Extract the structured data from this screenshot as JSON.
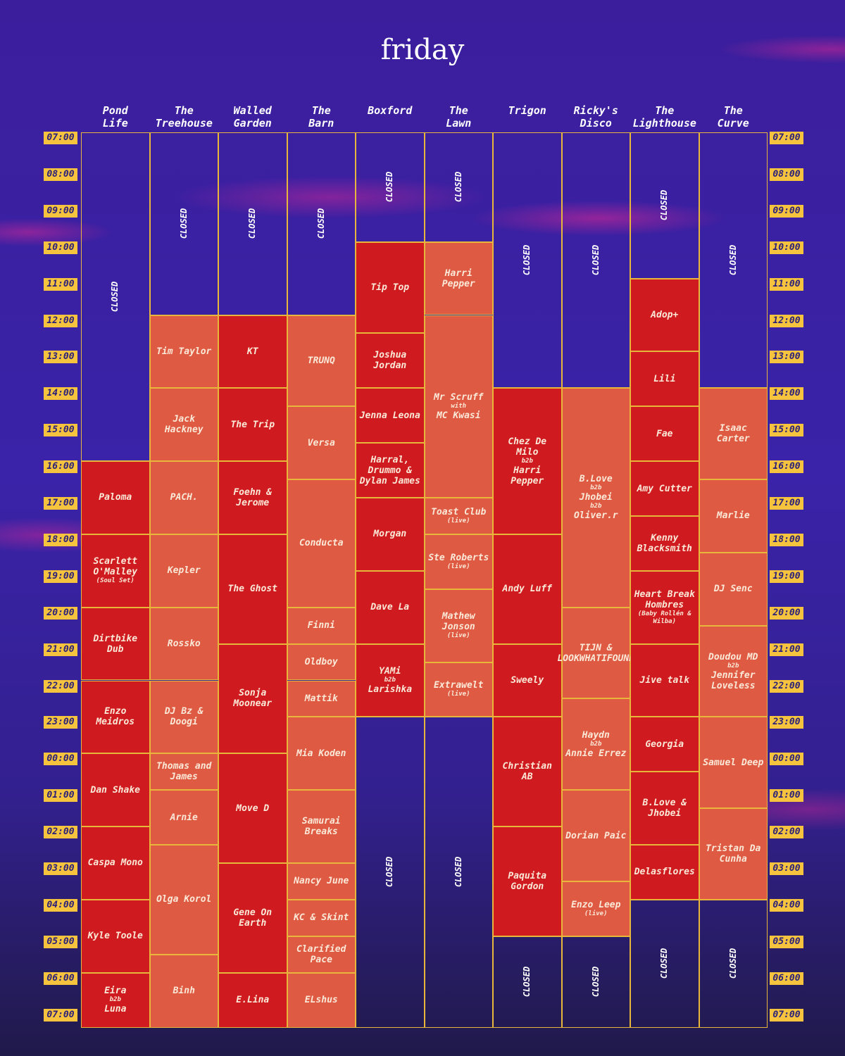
{
  "header": {
    "title": "friday"
  },
  "times": [
    "07:00",
    "08:00",
    "09:00",
    "10:00",
    "11:00",
    "12:00",
    "13:00",
    "14:00",
    "15:00",
    "16:00",
    "17:00",
    "18:00",
    "19:00",
    "20:00",
    "21:00",
    "22:00",
    "23:00",
    "00:00",
    "01:00",
    "02:00",
    "03:00",
    "04:00",
    "05:00",
    "06:00",
    "07:00"
  ],
  "stages": [
    {
      "name": [
        "Pond",
        "Life"
      ],
      "color": "#cf1a1f",
      "slots": [
        {
          "parts": [
            "CLOSED"
          ],
          "closed": true,
          "start": 7,
          "end": 16
        },
        {
          "parts": [
            "Paloma"
          ],
          "start": 16,
          "end": 18
        },
        {
          "parts": [
            "Scarlett O'Malley",
            "(Soul Set)"
          ],
          "start": 18,
          "end": 20
        },
        {
          "parts": [
            "Dirtbike Dub"
          ],
          "start": 20,
          "end": 22
        },
        {
          "parts": [
            "Enzo Meidros"
          ],
          "start": 22,
          "end": 24
        },
        {
          "parts": [
            "Dan Shake"
          ],
          "start": 24,
          "end": 26
        },
        {
          "parts": [
            "Caspa Mono"
          ],
          "start": 26,
          "end": 28
        },
        {
          "parts": [
            "Kyle Toole"
          ],
          "start": 28,
          "end": 30
        },
        {
          "parts": [
            "Eira",
            "b2b",
            "Luna"
          ],
          "start": 30,
          "end": 31.5
        }
      ]
    },
    {
      "name": [
        "The",
        "Treehouse"
      ],
      "color": "#de5a43",
      "slots": [
        {
          "parts": [
            "CLOSED"
          ],
          "closed": true,
          "start": 7,
          "end": 12
        },
        {
          "parts": [
            "Tim Taylor"
          ],
          "start": 12,
          "end": 14
        },
        {
          "parts": [
            "Jack Hackney"
          ],
          "start": 14,
          "end": 16
        },
        {
          "parts": [
            "PACH."
          ],
          "start": 16,
          "end": 18
        },
        {
          "parts": [
            "Kepler"
          ],
          "start": 18,
          "end": 20
        },
        {
          "parts": [
            "Rossko"
          ],
          "start": 20,
          "end": 22
        },
        {
          "parts": [
            "DJ Bz & Doogi"
          ],
          "start": 22,
          "end": 24
        },
        {
          "parts": [
            "Thomas and James"
          ],
          "start": 24,
          "end": 25
        },
        {
          "parts": [
            "Arnie"
          ],
          "start": 25,
          "end": 26.5
        },
        {
          "parts": [
            "Olga Korol"
          ],
          "start": 26.5,
          "end": 29.5
        },
        {
          "parts": [
            "Binh"
          ],
          "start": 29.5,
          "end": 31.5
        }
      ]
    },
    {
      "name": [
        "Walled",
        "Garden"
      ],
      "color": "#cf1a1f",
      "slots": [
        {
          "parts": [
            "CLOSED"
          ],
          "closed": true,
          "start": 7,
          "end": 12
        },
        {
          "parts": [
            "KT"
          ],
          "start": 12,
          "end": 14
        },
        {
          "parts": [
            "The Trip"
          ],
          "start": 14,
          "end": 16
        },
        {
          "parts": [
            "Foehn & Jerome"
          ],
          "start": 16,
          "end": 18
        },
        {
          "parts": [
            "The Ghost"
          ],
          "start": 18,
          "end": 21
        },
        {
          "parts": [
            "Sonja Moonear"
          ],
          "start": 21,
          "end": 24
        },
        {
          "parts": [
            "Move D"
          ],
          "start": 24,
          "end": 27
        },
        {
          "parts": [
            "Gene On Earth"
          ],
          "start": 27,
          "end": 30
        },
        {
          "parts": [
            "E.Lina"
          ],
          "start": 30,
          "end": 31.5
        }
      ]
    },
    {
      "name": [
        "The",
        "Barn"
      ],
      "color": "#de5a43",
      "slots": [
        {
          "parts": [
            "CLOSED"
          ],
          "closed": true,
          "start": 7,
          "end": 12
        },
        {
          "parts": [
            "TRUNQ"
          ],
          "start": 12,
          "end": 14.5
        },
        {
          "parts": [
            "Versa"
          ],
          "start": 14.5,
          "end": 16.5
        },
        {
          "parts": [
            "Conducta"
          ],
          "start": 16.5,
          "end": 20
        },
        {
          "parts": [
            "Finni"
          ],
          "start": 20,
          "end": 21
        },
        {
          "parts": [
            "Oldboy"
          ],
          "start": 21,
          "end": 22
        },
        {
          "parts": [
            "Mattik"
          ],
          "start": 22,
          "end": 23
        },
        {
          "parts": [
            "Mia Koden"
          ],
          "start": 23,
          "end": 25
        },
        {
          "parts": [
            "Samurai Breaks"
          ],
          "start": 25,
          "end": 27
        },
        {
          "parts": [
            "Nancy June"
          ],
          "start": 27,
          "end": 28
        },
        {
          "parts": [
            "KC & Skint"
          ],
          "start": 28,
          "end": 29
        },
        {
          "parts": [
            "Clarified Pace"
          ],
          "start": 29,
          "end": 30
        },
        {
          "parts": [
            "ELshus"
          ],
          "start": 30,
          "end": 31.5
        }
      ]
    },
    {
      "name": [
        "Boxford"
      ],
      "color": "#cf1a1f",
      "slots": [
        {
          "parts": [
            "CLOSED"
          ],
          "closed": true,
          "start": 7,
          "end": 10
        },
        {
          "parts": [
            "Tip Top"
          ],
          "start": 10,
          "end": 12.5
        },
        {
          "parts": [
            "Joshua Jordan"
          ],
          "start": 12.5,
          "end": 14
        },
        {
          "parts": [
            "Jenna Leona"
          ],
          "start": 14,
          "end": 15.5
        },
        {
          "parts": [
            "Harral, Drummo & Dylan James"
          ],
          "start": 15.5,
          "end": 17
        },
        {
          "parts": [
            "Morgan"
          ],
          "start": 17,
          "end": 19
        },
        {
          "parts": [
            "Dave La"
          ],
          "start": 19,
          "end": 21
        },
        {
          "parts": [
            "YAMi",
            "b2b",
            "Larishka"
          ],
          "start": 21,
          "end": 23
        },
        {
          "parts": [
            "CLOSED"
          ],
          "closed": true,
          "start": 23,
          "end": 31.5
        }
      ]
    },
    {
      "name": [
        "The",
        "Lawn"
      ],
      "color": "#de5a43",
      "slots": [
        {
          "parts": [
            "CLOSED"
          ],
          "closed": true,
          "start": 7,
          "end": 10
        },
        {
          "parts": [
            "Harri Pepper"
          ],
          "start": 10,
          "end": 12
        },
        {
          "parts": [
            "Mr Scruff",
            "with",
            "MC Kwasi"
          ],
          "start": 12,
          "end": 17
        },
        {
          "parts": [
            "Toast Club",
            "(live)"
          ],
          "start": 17,
          "end": 18
        },
        {
          "parts": [
            "Ste Roberts",
            "(live)"
          ],
          "start": 18,
          "end": 19.5
        },
        {
          "parts": [
            "Mathew Jonson",
            "(live)"
          ],
          "start": 19.5,
          "end": 21.5
        },
        {
          "parts": [
            "Extrawelt",
            "(live)"
          ],
          "start": 21.5,
          "end": 23
        },
        {
          "parts": [
            "CLOSED"
          ],
          "closed": true,
          "start": 23,
          "end": 31.5
        }
      ]
    },
    {
      "name": [
        "Trigon"
      ],
      "color": "#cf1a1f",
      "slots": [
        {
          "parts": [
            "CLOSED"
          ],
          "closed": true,
          "start": 7,
          "end": 14
        },
        {
          "parts": [
            "Chez De Milo",
            "b2b",
            "Harri Pepper"
          ],
          "start": 14,
          "end": 18
        },
        {
          "parts": [
            "Andy Luff"
          ],
          "start": 18,
          "end": 21
        },
        {
          "parts": [
            "Sweely"
          ],
          "start": 21,
          "end": 23
        },
        {
          "parts": [
            "Christian AB"
          ],
          "start": 23,
          "end": 26
        },
        {
          "parts": [
            "Paquita Gordon"
          ],
          "start": 26,
          "end": 29
        },
        {
          "parts": [
            "CLOSED"
          ],
          "closed": true,
          "start": 29,
          "end": 31.5
        }
      ]
    },
    {
      "name": [
        "Ricky's",
        "Disco"
      ],
      "color": "#de5a43",
      "slots": [
        {
          "parts": [
            "CLOSED"
          ],
          "closed": true,
          "start": 7,
          "end": 14
        },
        {
          "parts": [
            "B.Love",
            "b2b",
            "Jhobei",
            "b2b",
            "Oliver.r"
          ],
          "start": 14,
          "end": 20
        },
        {
          "parts": [
            "TIJN & LOOKWHATIFOUND"
          ],
          "start": 20,
          "end": 22.5
        },
        {
          "parts": [
            "Haydn",
            "b2b",
            "Annie Errez"
          ],
          "start": 22.5,
          "end": 25
        },
        {
          "parts": [
            "Dorian Paic"
          ],
          "start": 25,
          "end": 27.5
        },
        {
          "parts": [
            "Enzo Leep",
            "(live)"
          ],
          "start": 27.5,
          "end": 29
        },
        {
          "parts": [
            "CLOSED"
          ],
          "closed": true,
          "start": 29,
          "end": 31.5
        }
      ]
    },
    {
      "name": [
        "The",
        "Lighthouse"
      ],
      "color": "#cf1a1f",
      "slots": [
        {
          "parts": [
            "CLOSED"
          ],
          "closed": true,
          "start": 7,
          "end": 11
        },
        {
          "parts": [
            "Adop+"
          ],
          "start": 11,
          "end": 13
        },
        {
          "parts": [
            "Lili"
          ],
          "start": 13,
          "end": 14.5
        },
        {
          "parts": [
            "Fae"
          ],
          "start": 14.5,
          "end": 16
        },
        {
          "parts": [
            "Amy Cutter"
          ],
          "start": 16,
          "end": 17.5
        },
        {
          "parts": [
            "Kenny Blacksmith"
          ],
          "start": 17.5,
          "end": 19
        },
        {
          "parts": [
            "Heart Break Hombres",
            "(Baby Rollén & Wilba)"
          ],
          "start": 19,
          "end": 21
        },
        {
          "parts": [
            "Jive talk"
          ],
          "start": 21,
          "end": 23
        },
        {
          "parts": [
            "Georgia"
          ],
          "start": 23,
          "end": 24.5
        },
        {
          "parts": [
            "B.Love & Jhobei"
          ],
          "start": 24.5,
          "end": 26.5
        },
        {
          "parts": [
            "Delasflores"
          ],
          "start": 26.5,
          "end": 28
        },
        {
          "parts": [
            "CLOSED"
          ],
          "closed": true,
          "start": 28,
          "end": 31.5
        }
      ]
    },
    {
      "name": [
        "The",
        "Curve"
      ],
      "color": "#de5a43",
      "slots": [
        {
          "parts": [
            "CLOSED"
          ],
          "closed": true,
          "start": 7,
          "end": 14
        },
        {
          "parts": [
            "Isaac Carter"
          ],
          "start": 14,
          "end": 16.5
        },
        {
          "parts": [
            "Marlie"
          ],
          "start": 16.5,
          "end": 18.5
        },
        {
          "parts": [
            "DJ Senc"
          ],
          "start": 18.5,
          "end": 20.5
        },
        {
          "parts": [
            "Doudou MD",
            "b2b",
            "Jennifer Loveless"
          ],
          "start": 20.5,
          "end": 23
        },
        {
          "parts": [
            "Samuel Deep"
          ],
          "start": 23,
          "end": 25.5
        },
        {
          "parts": [
            "Tristan Da Cunha"
          ],
          "start": 25.5,
          "end": 28
        },
        {
          "parts": [
            "CLOSED"
          ],
          "closed": true,
          "start": 28,
          "end": 31.5
        }
      ]
    }
  ]
}
